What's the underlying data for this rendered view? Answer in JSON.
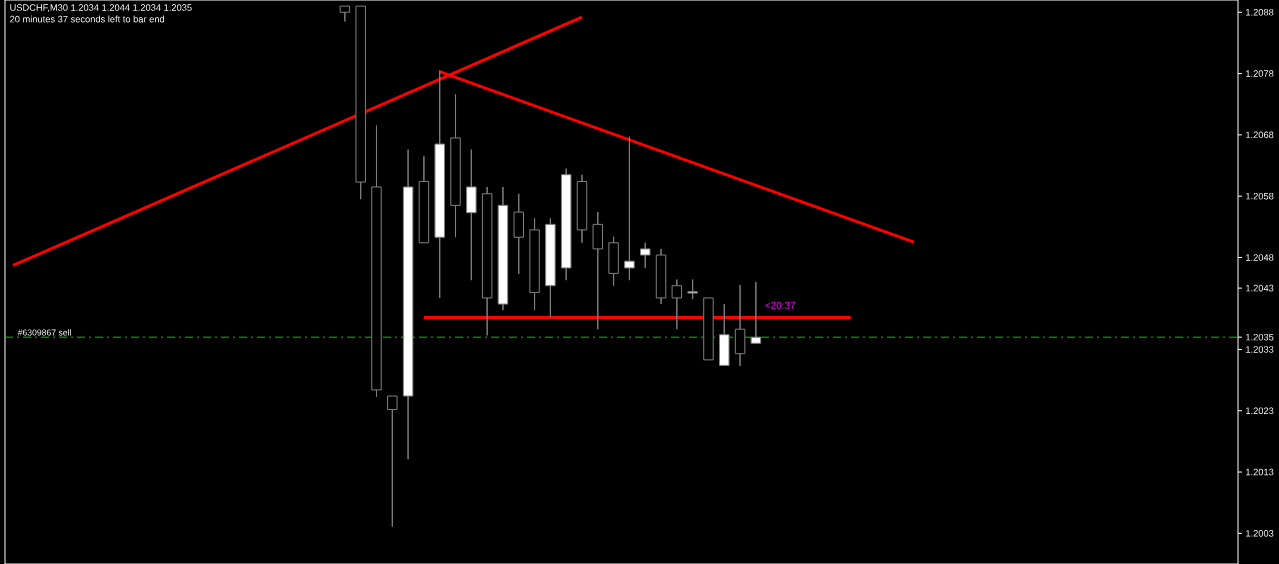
{
  "chart_data": {
    "type": "candlestick",
    "title": "USDCHF,M30  1.2034 1.2044 1.2034 1.2035",
    "subtitle": "20 minutes 37 seconds left to bar end",
    "categories": [
      null,
      null,
      null,
      null,
      null,
      null,
      null,
      null,
      null,
      null,
      null,
      null,
      null,
      null,
      null,
      null,
      null,
      null,
      null,
      null,
      null,
      null,
      null,
      null,
      null,
      null,
      null,
      null,
      null,
      null,
      null,
      null,
      null,
      null,
      null,
      null,
      null,
      null,
      null,
      null,
      null,
      null,
      null,
      null,
      null,
      null,
      null,
      null,
      null,
      null,
      null,
      null,
      null,
      null,
      null,
      null,
      null,
      null,
      null,
      null,
      null,
      null,
      null,
      null,
      null,
      null,
      null,
      null,
      null,
      null,
      null,
      null,
      null,
      null,
      null,
      null,
      null,
      null
    ],
    "ohlc": [
      null,
      null,
      null,
      null,
      null,
      null,
      null,
      null,
      null,
      null,
      null,
      null,
      null,
      null,
      null,
      null,
      null,
      null,
      null,
      null,
      null,
      [
        1.2089,
        1.2089,
        1.20865,
        1.2088
      ],
      [
        1.2089,
        1.2089,
        1.20575,
        1.20603
      ],
      [
        1.20595,
        1.20695,
        1.20253,
        1.20264
      ],
      [
        1.20254,
        1.20254,
        1.20041,
        1.20232
      ],
      [
        1.20254,
        1.20656,
        1.20151,
        1.20595
      ],
      [
        1.20604,
        1.20645,
        1.20504,
        1.20504
      ],
      [
        1.20513,
        1.20785,
        1.20414,
        1.20665
      ],
      [
        1.20675,
        1.20746,
        1.20513,
        1.20565
      ],
      [
        1.20553,
        1.20656,
        1.20443,
        1.20595
      ],
      [
        1.20584,
        1.20595,
        1.20353,
        1.20414
      ],
      [
        1.20404,
        1.20595,
        1.20394,
        1.20565
      ],
      [
        1.20554,
        1.20584,
        1.20453,
        1.20513
      ],
      [
        1.20525,
        1.20544,
        1.20394,
        1.20423
      ],
      [
        1.20434,
        1.20544,
        1.20383,
        1.20534
      ],
      [
        1.20463,
        1.20625,
        1.20443,
        1.20615
      ],
      [
        1.20604,
        1.20615,
        1.20504,
        1.20525
      ],
      [
        1.20534,
        1.20554,
        1.20363,
        1.20494
      ],
      [
        1.20504,
        1.20514,
        1.20434,
        1.20454
      ],
      [
        1.20463,
        1.20677,
        1.20443,
        1.20474
      ],
      [
        1.20484,
        1.20504,
        1.20463,
        1.20494
      ],
      [
        1.20484,
        1.20494,
        1.20404,
        1.20414
      ],
      [
        1.20434,
        1.20444,
        1.20363,
        1.20414
      ],
      [
        1.20422,
        1.20444,
        1.20412,
        1.20424
      ],
      [
        1.20414,
        1.20414,
        1.20313,
        1.20313
      ],
      [
        1.20304,
        1.20404,
        1.20304,
        1.20354
      ],
      [
        1.20363,
        1.20435,
        1.20303,
        1.20323
      ],
      [
        1.2034,
        1.2044,
        1.2034,
        1.2035
      ],
      null,
      null,
      null,
      null,
      null,
      null,
      null,
      null,
      null,
      null,
      null,
      null,
      null,
      null,
      null,
      null,
      null,
      null,
      null,
      null,
      null,
      null,
      null,
      null,
      null,
      null,
      null,
      null,
      null,
      null
    ],
    "series": [
      {
        "type": "line",
        "values": [
          1.20467,
          null,
          null,
          null,
          null,
          null,
          null,
          null,
          null,
          null,
          null,
          null,
          null,
          null,
          null,
          null,
          null,
          null,
          null,
          null,
          null,
          null,
          null,
          null,
          null,
          null,
          null,
          null,
          null,
          null,
          null,
          null,
          null,
          null,
          null,
          null,
          1.20872,
          null,
          null,
          null,
          null,
          null,
          null,
          null,
          null,
          null,
          null,
          null,
          null,
          null,
          null,
          null,
          null,
          null,
          null,
          null,
          null,
          null,
          null,
          null,
          null,
          null,
          null,
          null,
          null,
          null,
          null,
          null,
          null,
          null,
          null,
          null,
          null,
          null,
          null,
          null,
          null,
          null
        ],
        "color": "#ff0000"
      },
      {
        "type": "line",
        "values": [
          null,
          null,
          null,
          null,
          null,
          null,
          null,
          null,
          null,
          null,
          null,
          null,
          null,
          null,
          null,
          null,
          null,
          null,
          null,
          null,
          null,
          null,
          null,
          null,
          null,
          null,
          null,
          1.20783,
          null,
          null,
          null,
          null,
          null,
          null,
          null,
          null,
          null,
          null,
          null,
          null,
          null,
          null,
          null,
          null,
          null,
          null,
          null,
          null,
          null,
          null,
          null,
          null,
          null,
          null,
          null,
          null,
          null,
          1.20505,
          null,
          null,
          null,
          null,
          null,
          null,
          null,
          null,
          null,
          null,
          null,
          null,
          null,
          null,
          null,
          null,
          null,
          null,
          null,
          null
        ],
        "color": "#ff0000"
      },
      {
        "type": "line",
        "values": [
          null,
          null,
          null,
          null,
          null,
          null,
          null,
          null,
          null,
          null,
          null,
          null,
          null,
          null,
          null,
          null,
          null,
          null,
          null,
          null,
          null,
          null,
          null,
          null,
          null,
          null,
          1.20382,
          null,
          null,
          null,
          null,
          null,
          null,
          null,
          null,
          null,
          null,
          null,
          null,
          null,
          null,
          null,
          null,
          null,
          null,
          null,
          null,
          null,
          null,
          null,
          null,
          null,
          null,
          1.20382,
          null,
          null,
          null,
          null,
          null,
          null,
          null,
          null,
          null,
          null,
          null,
          null,
          null,
          null,
          null,
          null,
          null,
          null,
          null,
          null,
          null,
          null,
          null,
          null
        ],
        "color": "#ff0000"
      }
    ],
    "ylim": [
      1.1998,
      1.209
    ],
    "yticks": [
      1.2003,
      1.2013,
      1.2023,
      1.2033,
      1.2035,
      1.2043,
      1.2048,
      1.2058,
      1.2068,
      1.2078,
      1.2088
    ],
    "tick_labels": "y",
    "ref_lines": [
      {
        "axis": "y",
        "value": 1.2035,
        "label": "#6309867 sell",
        "color": "#00c800",
        "line_style": "dashed"
      }
    ],
    "annotations": [
      "<20:37"
    ]
  }
}
